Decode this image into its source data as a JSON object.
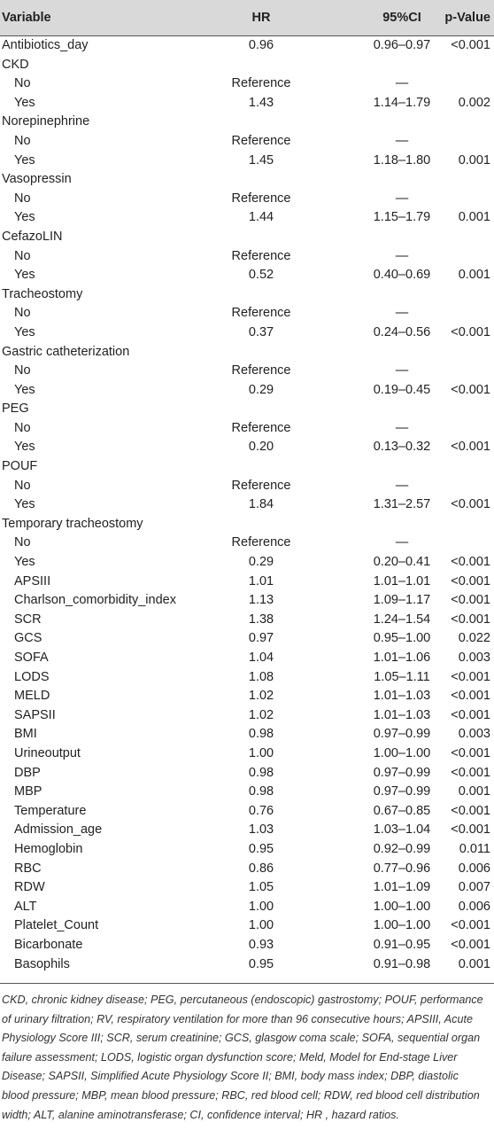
{
  "table": {
    "header": [
      "Variable",
      "HR",
      "95%CI",
      "p-Value"
    ],
    "rows": [
      {
        "variable": "Antibiotics_day",
        "hr": "0.96",
        "ci": "0.96–0.97",
        "p": "<0.001"
      },
      {
        "variable": "CKD",
        "rows": [
          {
            "variable": "No",
            "hr": "Reference",
            "ci": "—"
          },
          {
            "variable": "Yes",
            "hr": "1.43",
            "ci": "1.14–1.79",
            "p": "0.002"
          }
        ]
      },
      {
        "variable": "Norepinephrine",
        "rows": [
          {
            "variable": "No",
            "hr": "Reference",
            "ci": "—"
          },
          {
            "variable": "Yes",
            "hr": "1.45",
            "ci": "1.18–1.80",
            "p": "0.001"
          }
        ]
      },
      {
        "variable": "Vasopressin",
        "rows": [
          {
            "variable": "No",
            "hr": "Reference",
            "ci": "—"
          },
          {
            "variable": "Yes",
            "hr": "1.44",
            "ci": "1.15–1.79",
            "p": "0.001"
          }
        ]
      },
      {
        "variable": "CefazoLIN",
        "rows": [
          {
            "variable": "No",
            "hr": "Reference",
            "ci": "—"
          },
          {
            "variable": "Yes",
            "hr": "0.52",
            "ci": "0.40–0.69",
            "p": "0.001"
          }
        ]
      },
      {
        "variable": "Tracheostomy",
        "rows": [
          {
            "variable": "No",
            "hr": "Reference",
            "ci": "—"
          },
          {
            "variable": "Yes",
            "hr": "0.37",
            "ci": "0.24–0.56",
            "p": "<0.001"
          }
        ]
      },
      {
        "variable": "Gastric catheterization",
        "rows": [
          {
            "variable": "No",
            "hr": "Reference",
            "ci": "—"
          },
          {
            "variable": "Yes",
            "hr": "0.29",
            "ci": "0.19–0.45",
            "p": "<0.001"
          }
        ]
      },
      {
        "variable": "PEG",
        "rows": [
          {
            "variable": "No",
            "hr": "Reference",
            "ci": "—"
          },
          {
            "variable": "Yes",
            "hr": "0.20",
            "ci": "0.13–0.32",
            "p": "<0.001"
          }
        ]
      },
      {
        "variable": "POUF",
        "rows": [
          {
            "variable": "No",
            "hr": "Reference",
            "ci": "—"
          },
          {
            "variable": "Yes",
            "hr": "1.84",
            "ci": "1.31–2.57",
            "p": "<0.001"
          }
        ]
      },
      {
        "variable": "Temporary tracheostomy",
        "rows": [
          {
            "variable": "No",
            "hr": "Reference",
            "ci": "—"
          },
          {
            "variable": "Yes",
            "hr": "0.29",
            "ci": "0.20–0.41",
            "p": "<0.001"
          },
          {
            "variable": "APSIII",
            "hr": "1.01",
            "ci": "1.01–1.01",
            "p": "<0.001"
          },
          {
            "variable": "Charlson_comorbidity_index",
            "hr": "1.13",
            "ci": "1.09–1.17",
            "p": "<0.001"
          },
          {
            "variable": "SCR",
            "hr": "1.38",
            "ci": "1.24–1.54",
            "p": "<0.001"
          },
          {
            "variable": "GCS",
            "hr": "0.97",
            "ci": "0.95–1.00",
            "p": "0.022"
          },
          {
            "variable": "SOFA",
            "hr": "1.04",
            "ci": "1.01–1.06",
            "p": "0.003"
          },
          {
            "variable": "LODS",
            "hr": "1.08",
            "ci": "1.05–1.11",
            "p": "<0.001"
          },
          {
            "variable": "MELD",
            "hr": "1.02",
            "ci": "1.01–1.03",
            "p": "<0.001"
          },
          {
            "variable": "SAPSII",
            "hr": "1.02",
            "ci": "1.01–1.03",
            "p": "<0.001"
          },
          {
            "variable": "BMI",
            "hr": "0.98",
            "ci": "0.97–0.99",
            "p": "0.003"
          },
          {
            "variable": "Urineoutput",
            "hr": "1.00",
            "ci": "1.00–1.00",
            "p": "<0.001"
          },
          {
            "variable": "DBP",
            "hr": "0.98",
            "ci": "0.97–0.99",
            "p": "<0.001"
          },
          {
            "variable": "MBP",
            "hr": "0.98",
            "ci": "0.97–0.99",
            "p": "0.001"
          },
          {
            "variable": "Temperature",
            "hr": "0.76",
            "ci": "0.67–0.85",
            "p": "<0.001"
          },
          {
            "variable": "Admission_age",
            "hr": "1.03",
            "ci": "1.03–1.04",
            "p": "<0.001"
          },
          {
            "variable": "Hemoglobin",
            "hr": "0.95",
            "ci": "0.92–0.99",
            "p": "0.011"
          },
          {
            "variable": "RBC",
            "hr": "0.86",
            "ci": "0.77–0.96",
            "p": "0.006"
          },
          {
            "variable": "RDW",
            "hr": "1.05",
            "ci": "1.01–1.09",
            "p": "0.007"
          },
          {
            "variable": "ALT",
            "hr": "1.00",
            "ci": "1.00–1.00",
            "p": "0.006"
          },
          {
            "variable": "Platelet_Count",
            "hr": "1.00",
            "ci": "1.00–1.00",
            "p": "<0.001"
          },
          {
            "variable": "Bicarbonate",
            "hr": "0.93",
            "ci": "0.91–0.95",
            "p": "<0.001"
          },
          {
            "variable": "Basophils",
            "hr": "0.95",
            "ci": "0.91–0.98",
            "p": "0.001"
          }
        ]
      }
    ],
    "footnote": "CKD, chronic kidney disease; PEG, percutaneous (endoscopic) gastrostomy; POUF, performance of urinary filtration; RV, respiratory ventilation for more than 96 consecutive hours; APSIII, Acute Physiology Score III; SCR, serum creatinine; GCS, glasgow coma scale; SOFA, sequential organ failure assessment; LODS, logistic organ dysfunction score; Meld, Model for End-stage Liver Disease; SAPSII, Simplified Acute Physiology Score II; BMI, body mass index; DBP, diastolic blood pressure; MBP, mean blood pressure; RBC, red blood cell; RDW, red blood cell distribution width; ALT, alanine aminotransferase; CI, confidence interval; HR , hazard ratios."
  }
}
